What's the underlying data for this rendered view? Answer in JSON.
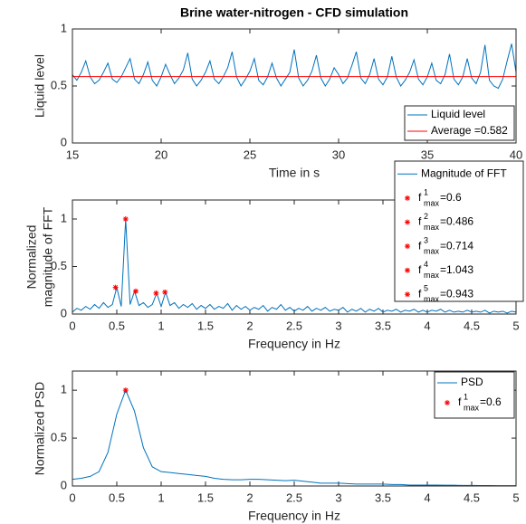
{
  "chart_data": [
    {
      "type": "line",
      "title": "Brine water-nitrogen - CFD simulation",
      "x_label": "Time in s",
      "y_label": [
        "Liquid level"
      ],
      "xlim": [
        15,
        40
      ],
      "xticks": [
        15,
        20,
        25,
        30,
        35,
        40
      ],
      "ylim": [
        0,
        1
      ],
      "yticks": [
        0,
        0.5,
        1
      ],
      "legend": "southeast",
      "x": [
        15,
        15.25,
        15.5,
        15.75,
        16,
        16.25,
        16.5,
        16.75,
        17,
        17.25,
        17.5,
        17.75,
        18,
        18.25,
        18.5,
        18.75,
        19,
        19.25,
        19.5,
        19.75,
        20,
        20.25,
        20.5,
        20.75,
        21,
        21.25,
        21.5,
        21.75,
        22,
        22.25,
        22.5,
        22.75,
        23,
        23.25,
        23.5,
        23.75,
        24,
        24.25,
        24.5,
        24.75,
        25,
        25.25,
        25.5,
        25.75,
        26,
        26.25,
        26.5,
        26.75,
        27,
        27.25,
        27.5,
        27.75,
        28,
        28.25,
        28.5,
        28.75,
        29,
        29.25,
        29.5,
        29.75,
        30,
        30.25,
        30.5,
        30.75,
        31,
        31.25,
        31.5,
        31.75,
        32,
        32.25,
        32.5,
        32.75,
        33,
        33.25,
        33.5,
        33.75,
        34,
        34.25,
        34.5,
        34.75,
        35,
        35.25,
        35.5,
        35.75,
        36,
        36.25,
        36.5,
        36.75,
        37,
        37.25,
        37.5,
        37.75,
        38,
        38.25,
        38.5,
        38.75,
        39,
        39.25,
        39.5,
        39.75,
        40
      ],
      "series": [
        {
          "name": "Liquid level",
          "color": "#0072bd",
          "values": [
            0.6,
            0.55,
            0.62,
            0.72,
            0.58,
            0.52,
            0.55,
            0.62,
            0.7,
            0.56,
            0.53,
            0.58,
            0.66,
            0.74,
            0.56,
            0.52,
            0.6,
            0.71,
            0.55,
            0.5,
            0.58,
            0.69,
            0.6,
            0.52,
            0.57,
            0.64,
            0.79,
            0.56,
            0.5,
            0.55,
            0.62,
            0.72,
            0.56,
            0.52,
            0.58,
            0.66,
            0.8,
            0.58,
            0.5,
            0.56,
            0.63,
            0.74,
            0.55,
            0.51,
            0.58,
            0.7,
            0.57,
            0.5,
            0.56,
            0.62,
            0.82,
            0.57,
            0.5,
            0.55,
            0.63,
            0.77,
            0.57,
            0.5,
            0.56,
            0.66,
            0.6,
            0.52,
            0.57,
            0.68,
            0.8,
            0.57,
            0.52,
            0.6,
            0.74,
            0.56,
            0.51,
            0.58,
            0.76,
            0.58,
            0.5,
            0.55,
            0.62,
            0.73,
            0.56,
            0.51,
            0.58,
            0.7,
            0.55,
            0.52,
            0.6,
            0.78,
            0.56,
            0.51,
            0.58,
            0.74,
            0.57,
            0.52,
            0.62,
            0.86,
            0.55,
            0.5,
            0.48,
            0.56,
            0.72,
            0.87,
            0.62
          ]
        },
        {
          "name": "Average =0.582",
          "color": "#ff0000",
          "x": [
            15,
            40
          ],
          "values": [
            0.582,
            0.582
          ]
        }
      ]
    },
    {
      "type": "line",
      "x_label": "Frequency in Hz",
      "y_label": [
        "Normalized",
        "magnitude of FFT"
      ],
      "xlim": [
        0,
        5
      ],
      "xticks": [
        0,
        0.5,
        1,
        1.5,
        2,
        2.5,
        3,
        3.5,
        4,
        4.5,
        5
      ],
      "ylim": [
        0,
        1.2
      ],
      "yticks": [
        0,
        0.5,
        1
      ],
      "legend": "northeast",
      "x": [
        0,
        0.05,
        0.1,
        0.15,
        0.2,
        0.25,
        0.3,
        0.35,
        0.4,
        0.45,
        0.5,
        0.55,
        0.6,
        0.65,
        0.7,
        0.75,
        0.8,
        0.85,
        0.9,
        0.95,
        1,
        1.05,
        1.1,
        1.15,
        1.2,
        1.25,
        1.3,
        1.35,
        1.4,
        1.45,
        1.5,
        1.55,
        1.6,
        1.65,
        1.7,
        1.75,
        1.8,
        1.85,
        1.9,
        1.95,
        2,
        2.05,
        2.1,
        2.15,
        2.2,
        2.25,
        2.3,
        2.35,
        2.4,
        2.45,
        2.5,
        2.55,
        2.6,
        2.65,
        2.7,
        2.75,
        2.8,
        2.85,
        2.9,
        2.95,
        3,
        3.05,
        3.1,
        3.15,
        3.2,
        3.25,
        3.3,
        3.35,
        3.4,
        3.45,
        3.5,
        3.55,
        3.6,
        3.65,
        3.7,
        3.75,
        3.8,
        3.85,
        3.9,
        3.95,
        4,
        4.05,
        4.1,
        4.15,
        4.2,
        4.25,
        4.3,
        4.35,
        4.4,
        4.45,
        4.5,
        4.55,
        4.6,
        4.65,
        4.7,
        4.75,
        4.8,
        4.85,
        4.9,
        4.95,
        5
      ],
      "series": [
        {
          "name": "Magnitude of FFT",
          "color": "#0072bd",
          "values": [
            0.02,
            0.06,
            0.04,
            0.08,
            0.05,
            0.1,
            0.06,
            0.12,
            0.07,
            0.1,
            0.28,
            0.08,
            1.0,
            0.1,
            0.24,
            0.09,
            0.12,
            0.07,
            0.1,
            0.22,
            0.08,
            0.23,
            0.09,
            0.12,
            0.06,
            0.1,
            0.07,
            0.11,
            0.05,
            0.09,
            0.06,
            0.1,
            0.05,
            0.08,
            0.06,
            0.11,
            0.04,
            0.09,
            0.05,
            0.08,
            0.04,
            0.07,
            0.05,
            0.09,
            0.03,
            0.07,
            0.05,
            0.1,
            0.04,
            0.07,
            0.03,
            0.06,
            0.04,
            0.08,
            0.03,
            0.06,
            0.04,
            0.07,
            0.03,
            0.05,
            0.04,
            0.07,
            0.02,
            0.05,
            0.03,
            0.06,
            0.02,
            0.05,
            0.03,
            0.06,
            0.02,
            0.04,
            0.03,
            0.05,
            0.02,
            0.04,
            0.03,
            0.05,
            0.02,
            0.04,
            0.02,
            0.04,
            0.03,
            0.05,
            0.02,
            0.04,
            0.02,
            0.03,
            0.02,
            0.04,
            0.02,
            0.03,
            0.02,
            0.04,
            0.01,
            0.03,
            0.02,
            0.03,
            0.01,
            0.03,
            0.02
          ]
        }
      ],
      "markers": {
        "color": "#ff0000",
        "x": [
          0.6,
          0.486,
          0.714,
          1.043,
          0.943
        ],
        "values": [
          1.0,
          0.28,
          0.24,
          0.23,
          0.22
        ],
        "labels": [
          {
            "symbol": "f",
            "superscript": "1",
            "subscript": "max",
            "text": "=0.6"
          },
          {
            "symbol": "f",
            "superscript": "2",
            "subscript": "max",
            "text": "=0.486"
          },
          {
            "symbol": "f",
            "superscript": "3",
            "subscript": "max",
            "text": "=0.714"
          },
          {
            "symbol": "f",
            "superscript": "4",
            "subscript": "max",
            "text": "=1.043"
          },
          {
            "symbol": "f",
            "superscript": "5",
            "subscript": "max",
            "text": "=0.943"
          }
        ]
      }
    },
    {
      "type": "line",
      "x_label": "Frequency in Hz",
      "y_label": [
        "Normalized PSD"
      ],
      "xlim": [
        0,
        5
      ],
      "xticks": [
        0,
        0.5,
        1,
        1.5,
        2,
        2.5,
        3,
        3.5,
        4,
        4.5,
        5
      ],
      "ylim": [
        0,
        1.2
      ],
      "yticks": [
        0,
        0.5,
        1
      ],
      "legend": "northeast",
      "x": [
        0,
        0.1,
        0.2,
        0.3,
        0.4,
        0.5,
        0.6,
        0.7,
        0.8,
        0.9,
        1,
        1.1,
        1.2,
        1.3,
        1.4,
        1.5,
        1.6,
        1.7,
        1.8,
        1.9,
        2,
        2.1,
        2.2,
        2.3,
        2.4,
        2.5,
        2.6,
        2.7,
        2.8,
        2.9,
        3,
        3.1,
        3.2,
        3.3,
        3.4,
        3.5,
        3.6,
        3.7,
        3.8,
        3.9,
        4,
        4.1,
        4.2,
        4.3,
        4.4,
        4.5,
        4.6,
        4.7,
        4.8,
        4.9,
        5
      ],
      "series": [
        {
          "name": "PSD",
          "color": "#0072bd",
          "values": [
            0.07,
            0.08,
            0.1,
            0.15,
            0.35,
            0.75,
            1.0,
            0.78,
            0.4,
            0.2,
            0.15,
            0.14,
            0.13,
            0.12,
            0.11,
            0.1,
            0.08,
            0.07,
            0.065,
            0.065,
            0.07,
            0.07,
            0.065,
            0.06,
            0.055,
            0.06,
            0.05,
            0.04,
            0.03,
            0.03,
            0.03,
            0.025,
            0.02,
            0.02,
            0.02,
            0.02,
            0.015,
            0.015,
            0.01,
            0.01,
            0.01,
            0.01,
            0.008,
            0.008,
            0.006,
            0.006,
            0.005,
            0.005,
            0.004,
            0.004,
            0.003
          ]
        }
      ],
      "markers": {
        "color": "#ff0000",
        "x": [
          0.6
        ],
        "values": [
          1.0
        ],
        "labels": [
          {
            "symbol": "f",
            "superscript": "1",
            "subscript": "max",
            "text": "=0.6"
          }
        ]
      }
    }
  ]
}
